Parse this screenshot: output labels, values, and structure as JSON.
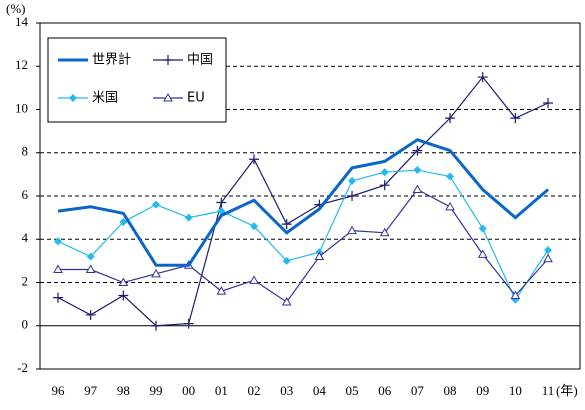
{
  "chart_data": {
    "type": "line",
    "y_unit": "(%)",
    "x_unit": "(年)",
    "categories": [
      "96",
      "97",
      "98",
      "99",
      "00",
      "01",
      "02",
      "03",
      "04",
      "05",
      "06",
      "07",
      "08",
      "09",
      "10",
      "11"
    ],
    "series": [
      {
        "name": "世界計",
        "color": "#0a66c8",
        "marker": "none",
        "values": [
          5.3,
          5.5,
          5.2,
          2.8,
          2.8,
          5.1,
          5.8,
          4.3,
          5.4,
          7.3,
          7.6,
          8.6,
          8.1,
          6.3,
          5.0,
          6.3
        ]
      },
      {
        "name": "中国",
        "color": "#1c1c6e",
        "marker": "plus",
        "values": [
          1.3,
          0.5,
          1.4,
          0.0,
          0.1,
          5.7,
          7.7,
          4.7,
          5.6,
          6.0,
          6.5,
          8.1,
          9.6,
          11.5,
          9.6,
          10.3
        ]
      },
      {
        "name": "米国",
        "color": "#22bbee",
        "marker": "diamond",
        "values": [
          3.9,
          3.2,
          4.8,
          5.6,
          5.0,
          5.3,
          4.6,
          3.0,
          3.4,
          6.7,
          7.1,
          7.2,
          6.9,
          4.5,
          1.2,
          3.5
        ]
      },
      {
        "name": "EU",
        "color": "#333399",
        "marker": "triangle",
        "values": [
          2.6,
          2.6,
          2.0,
          2.4,
          2.8,
          1.6,
          2.1,
          1.1,
          3.2,
          4.4,
          4.3,
          6.3,
          5.5,
          3.3,
          1.4,
          3.1
        ]
      }
    ],
    "ylim": [
      -2,
      14
    ],
    "yticks": [
      -2,
      0,
      2,
      4,
      6,
      8,
      10,
      12,
      14
    ],
    "grid": true
  }
}
